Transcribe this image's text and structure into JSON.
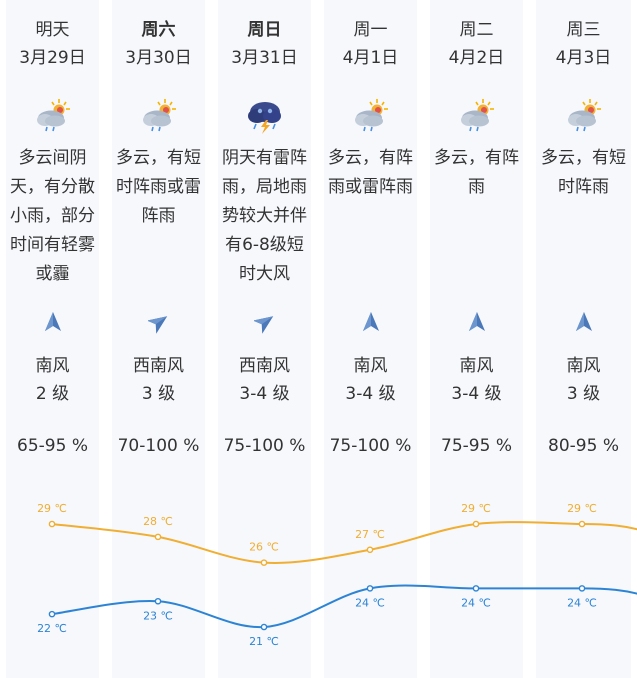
{
  "colors": {
    "high": "#f0ae32",
    "low": "#2d84d4",
    "column_bg": "#f6f8fc",
    "arrow": "#4a78b8"
  },
  "days": [
    {
      "day": "明天",
      "bold": false,
      "date": "3月29日",
      "icon": "cloudy-with-rain-icon",
      "desc": "多云间阴天，有分散小雨，部分时间有轻雾或霾",
      "wind_dir_icon": "north-arrow-icon",
      "wind": "南风",
      "level": "2 级",
      "humidity": "65-95 %",
      "high": "29 ℃",
      "low": "22 ℃"
    },
    {
      "day": "周六",
      "bold": true,
      "date": "3月30日",
      "icon": "cloudy-with-rain-icon",
      "desc": "多云，有短时阵雨或雷阵雨",
      "wind_dir_icon": "northeast-arrow-icon",
      "wind": "西南风",
      "level": "3 级",
      "humidity": "70-100 %",
      "high": "28 ℃",
      "low": "23 ℃"
    },
    {
      "day": "周日",
      "bold": true,
      "date": "3月31日",
      "icon": "thunderstorm-icon",
      "desc": "阴天有雷阵雨，局地雨势较大并伴有6-8级短时大风",
      "wind_dir_icon": "northeast-arrow-icon",
      "wind": "西南风",
      "level": "3-4 级",
      "humidity": "75-100 %",
      "high": "26 ℃",
      "low": "21 ℃"
    },
    {
      "day": "周一",
      "bold": false,
      "date": "4月1日",
      "icon": "cloudy-with-rain-icon",
      "desc": "多云，有阵雨或雷阵雨",
      "wind_dir_icon": "north-arrow-icon",
      "wind": "南风",
      "level": "3-4 级",
      "humidity": "75-100 %",
      "high": "27 ℃",
      "low": "24 ℃"
    },
    {
      "day": "周二",
      "bold": false,
      "date": "4月2日",
      "icon": "cloudy-with-rain-icon",
      "desc": "多云，有阵雨",
      "wind_dir_icon": "north-arrow-icon",
      "wind": "南风",
      "level": "3-4 级",
      "humidity": "75-95 %",
      "high": "29 ℃",
      "low": "24 ℃"
    },
    {
      "day": "周三",
      "bold": false,
      "date": "4月3日",
      "icon": "cloudy-with-rain-icon",
      "desc": "多云，有短时阵雨",
      "wind_dir_icon": "north-arrow-icon",
      "wind": "南风",
      "level": "3 级",
      "humidity": "80-95 %",
      "high": "29 ℃",
      "low": "24 ℃"
    }
  ],
  "chart_data": {
    "type": "line",
    "categories": [
      "3月29日",
      "3月30日",
      "3月31日",
      "4月1日",
      "4月2日",
      "4月3日"
    ],
    "series": [
      {
        "values": [
          29,
          28,
          26,
          27,
          29,
          29
        ]
      },
      {
        "values": [
          22,
          23,
          21,
          24,
          24,
          24
        ]
      }
    ],
    "ylim": [
      21,
      29
    ]
  }
}
